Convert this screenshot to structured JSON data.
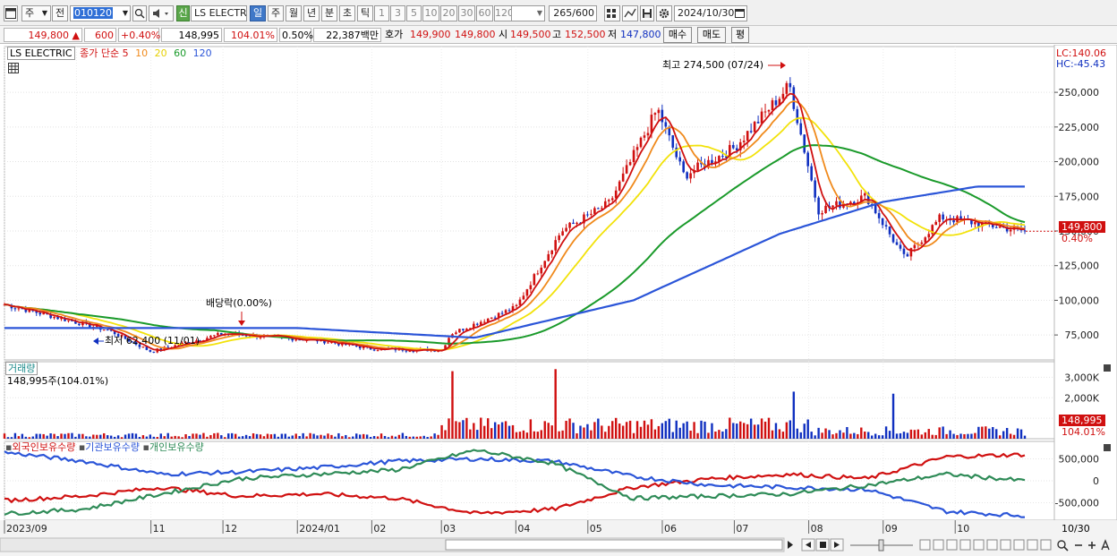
{
  "toolbar": {
    "period_label": "주",
    "prev_label": "전",
    "code_value": "010120",
    "name_badge": "신",
    "stock_name": "LS ELECTRI",
    "tabs": [
      {
        "label": "일",
        "active": true
      },
      {
        "label": "주",
        "active": false
      },
      {
        "label": "월",
        "active": false
      },
      {
        "label": "년",
        "active": false
      },
      {
        "label": "분",
        "active": false
      },
      {
        "label": "초",
        "active": false
      },
      {
        "label": "틱",
        "active": false
      }
    ],
    "intervals": [
      "1",
      "3",
      "5",
      "10",
      "20",
      "30",
      "60",
      "120"
    ],
    "count_value": "265",
    "count_max": "/600",
    "date_value": "2024/10/30"
  },
  "info": {
    "price": "149,800",
    "change": "600",
    "change_pct": "+0.40%",
    "volume": "148,995",
    "volume_ratio": "104.01%",
    "turnover": "0.50%",
    "amount": "22,387백만",
    "hoga_label": "호가",
    "ask": "149,900",
    "bid": "149,800",
    "open_label": "시",
    "open": "149,500",
    "high_label": "고",
    "high": "152,500",
    "low_label": "저",
    "low": "147,800",
    "buy_label": "매수",
    "sell_label": "매도",
    "avg_label": "평"
  },
  "colors": {
    "up": "#d01010",
    "down": "#1030c0",
    "ma5": "#d01010",
    "ma10": "#f08a1c",
    "ma20": "#f2e20a",
    "ma60": "#1a9a2a",
    "ma120": "#2b55d8",
    "foreign": "#d01010",
    "institution": "#2b55d8",
    "individual": "#2e8b57"
  },
  "icons": [
    "window-icon",
    "dropdown-icon",
    "search-icon",
    "speaker-icon",
    "grid-icon",
    "draw-icon",
    "save-icon",
    "settings-icon",
    "calendar-icon"
  ],
  "legend": {
    "name": "LS ELECTRIC",
    "title": "종가 단순",
    "ma": [
      "5",
      "10",
      "20",
      "60",
      "120"
    ]
  },
  "lc": "LC:140.06",
  "hc": "HC:-45.43",
  "last_price": "149,800",
  "last_pct": "0.40%",
  "annotations": {
    "high": "최고 274,500 (07/24)",
    "low": "최저 62,400 (11/01)",
    "dividend": "배당락(0.00%)"
  },
  "volume_panel": {
    "title": "거래량",
    "value": "148,995주(104.01%)",
    "last": "148,995",
    "last_pct": "104.01%"
  },
  "holdings_panel": {
    "foreign": "외국인보유수량",
    "institution": "기관보유수량",
    "individual": "개인보유수량"
  },
  "x_labels": [
    "2023/09",
    "11",
    "12",
    "2024/01",
    "02",
    "03",
    "04",
    "05",
    "06",
    "07",
    "08",
    "09",
    "10"
  ],
  "last_date": "10/30",
  "chart_data": [
    {
      "type": "line",
      "title": "",
      "y_ticks": [
        "250,000",
        "225,000",
        "200,000",
        "175,000",
        "150,000",
        "125,000",
        "100,000",
        "75,000"
      ],
      "ylim": [
        57000,
        283000
      ],
      "x": [
        "2023/09",
        "2023/10",
        "2023/11",
        "2023/12",
        "2024/01",
        "2024/02",
        "2024/03",
        "2024/04",
        "2024/05",
        "2024/06",
        "2024/07",
        "2024/08",
        "2024/09",
        "2024/10"
      ],
      "close_keypoints": [
        {
          "date": "2023/09/01",
          "value": 97000
        },
        {
          "date": "2023/10/15",
          "value": 78000
        },
        {
          "date": "2023/11/01",
          "value": 63000
        },
        {
          "date": "2023/12/01",
          "value": 76000
        },
        {
          "date": "2024/01/10",
          "value": 71000
        },
        {
          "date": "2024/02/01",
          "value": 65000
        },
        {
          "date": "2024/03/01",
          "value": 64000
        },
        {
          "date": "2024/03/05",
          "value": 76000
        },
        {
          "date": "2024/04/01",
          "value": 95000
        },
        {
          "date": "2024/04/20",
          "value": 150000
        },
        {
          "date": "2024/05/10",
          "value": 170000
        },
        {
          "date": "2024/05/30",
          "value": 238000
        },
        {
          "date": "2024/06/10",
          "value": 190000
        },
        {
          "date": "2024/07/01",
          "value": 210000
        },
        {
          "date": "2024/07/24",
          "value": 255000
        },
        {
          "date": "2024/08/05",
          "value": 165000
        },
        {
          "date": "2024/08/25",
          "value": 175000
        },
        {
          "date": "2024/09/10",
          "value": 130000
        },
        {
          "date": "2024/09/25",
          "value": 160000
        },
        {
          "date": "2024/10/30",
          "value": 149800
        }
      ],
      "series": [
        {
          "name": "5",
          "color": "#d01010"
        },
        {
          "name": "10",
          "color": "#f08a1c"
        },
        {
          "name": "20",
          "color": "#f2e20a"
        },
        {
          "name": "60",
          "color": "#1a9a2a"
        },
        {
          "name": "120",
          "color": "#2b55d8"
        }
      ],
      "ma120_keypoints": [
        {
          "date": "2023/09/01",
          "value": 80000
        },
        {
          "date": "2024/01/01",
          "value": 80000
        },
        {
          "date": "2024/03/15",
          "value": 73000
        },
        {
          "date": "2024/05/20",
          "value": 100000
        },
        {
          "date": "2024/07/20",
          "value": 148000
        },
        {
          "date": "2024/09/01",
          "value": 171000
        },
        {
          "date": "2024/10/10",
          "value": 182000
        },
        {
          "date": "2024/10/30",
          "value": 182000
        }
      ]
    },
    {
      "type": "bar",
      "title": "거래량",
      "y_ticks": [
        "3,000K",
        "2,000K",
        "1,000K"
      ],
      "ylim": [
        0,
        3500000
      ],
      "peaks": [
        {
          "date": "2024/03/05",
          "value": 3300000
        },
        {
          "date": "2024/04/18",
          "value": 3400000
        },
        {
          "date": "2024/07/26",
          "value": 2300000
        },
        {
          "date": "2024/09/05",
          "value": 2200000
        }
      ],
      "last_value": 148995
    },
    {
      "type": "line",
      "title": "",
      "y_ticks": [
        "500,000",
        "0",
        "-500,000"
      ],
      "ylim": [
        -900000,
        900000
      ],
      "series": [
        {
          "name": "외국인보유수량",
          "color": "#d01010",
          "values": [
            -450000,
            -350000,
            -150000,
            -350000,
            -300000,
            -400000,
            -750000,
            -650000,
            -150000,
            50000,
            150000,
            50000,
            550000,
            600000
          ]
        },
        {
          "name": "기관보유수량",
          "color": "#2b55d8",
          "values": [
            650000,
            450000,
            150000,
            200000,
            300000,
            450000,
            500000,
            450000,
            100000,
            -100000,
            -150000,
            -200000,
            -700000,
            -800000
          ]
        },
        {
          "name": "개인보유수량",
          "color": "#2e8b57",
          "values": [
            -750000,
            -650000,
            -300000,
            50000,
            150000,
            250000,
            700000,
            400000,
            -400000,
            -350000,
            -300000,
            -100000,
            150000,
            0
          ]
        }
      ]
    }
  ]
}
